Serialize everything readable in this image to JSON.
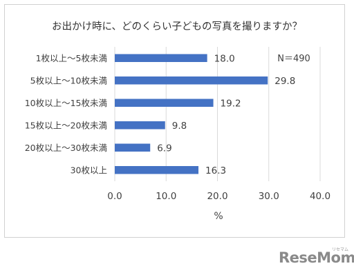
{
  "chart_data": {
    "type": "bar",
    "orientation": "horizontal",
    "title": "お出かけ時に、どのくらい子どもの写真を撮りますか？",
    "categories": [
      "1枚以上～5枚未満",
      "5枚以上～10枚未満",
      "10枚以上～15枚未満",
      "15枚以上～20枚未満",
      "20枚以上～30枚未満",
      "30枚以上"
    ],
    "values": [
      18.0,
      29.8,
      19.2,
      9.8,
      6.9,
      16.3
    ],
    "value_labels": [
      "18.0",
      "29.8",
      "19.2",
      "9.8",
      "6.9",
      "16.3"
    ],
    "xlabel": "%",
    "xlim": [
      0,
      40
    ],
    "xticks": [
      "0.0",
      "10.0",
      "20.0",
      "30.0",
      "40.0"
    ],
    "annotation": "N＝490",
    "grid": "vertical",
    "bar_color": "#4472c4",
    "grid_color": "#d9d9d9"
  },
  "watermark": {
    "brand": "ReseMom",
    "sub": "リセマム"
  }
}
